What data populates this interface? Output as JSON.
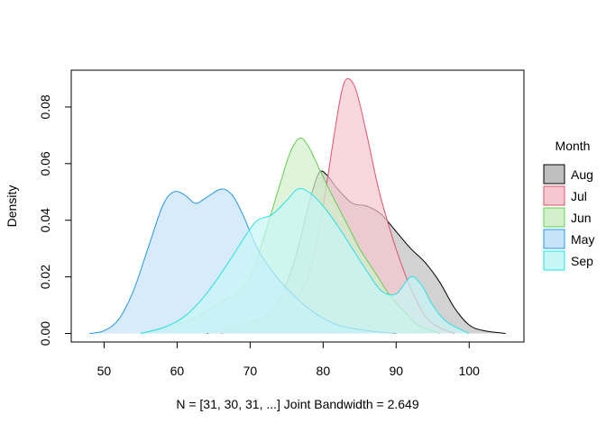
{
  "chart_data": {
    "type": "area",
    "title": "",
    "xlabel": "N = [31, 30, 31, ...]   Joint Bandwidth = 2.649",
    "ylabel": "Density",
    "xlim": [
      45.5,
      107.5
    ],
    "ylim": [
      -0.003,
      0.093
    ],
    "x_ticks": [
      50,
      60,
      70,
      80,
      90,
      100
    ],
    "y_ticks": [
      0.0,
      0.02,
      0.04,
      0.06,
      0.08
    ],
    "y_tick_labels": [
      "0.00",
      "0.02",
      "0.04",
      "0.06",
      "0.08"
    ],
    "grid": false,
    "legend": {
      "title": "Month",
      "placement": "right"
    },
    "series": [
      {
        "name": "Aug",
        "line_color": "#000000",
        "fill_color": "#bfbfbf",
        "points": [
          [
            64,
            0
          ],
          [
            68,
            0.002
          ],
          [
            72,
            0.006
          ],
          [
            74,
            0.012
          ],
          [
            76,
            0.025
          ],
          [
            77.5,
            0.04
          ],
          [
            78.5,
            0.05
          ],
          [
            79.5,
            0.057
          ],
          [
            80.5,
            0.056
          ],
          [
            82,
            0.051
          ],
          [
            84,
            0.046
          ],
          [
            86,
            0.045
          ],
          [
            88,
            0.042
          ],
          [
            90,
            0.036
          ],
          [
            92,
            0.03
          ],
          [
            94,
            0.025
          ],
          [
            96,
            0.018
          ],
          [
            98,
            0.009
          ],
          [
            100,
            0.003
          ],
          [
            102,
            0.001
          ],
          [
            105,
            0
          ]
        ]
      },
      {
        "name": "Jul",
        "line_color": "#df536b",
        "fill_color": "#f5c7cf",
        "points": [
          [
            66,
            0
          ],
          [
            70,
            0.002
          ],
          [
            74,
            0.007
          ],
          [
            77,
            0.015
          ],
          [
            78.5,
            0.025
          ],
          [
            80,
            0.045
          ],
          [
            81.5,
            0.07
          ],
          [
            82.5,
            0.085
          ],
          [
            83.3,
            0.09
          ],
          [
            84.5,
            0.086
          ],
          [
            86,
            0.07
          ],
          [
            87.5,
            0.052
          ],
          [
            89,
            0.038
          ],
          [
            90.5,
            0.026
          ],
          [
            92,
            0.016
          ],
          [
            94,
            0.006
          ],
          [
            96,
            0.002
          ],
          [
            98,
            0
          ]
        ]
      },
      {
        "name": "Jun",
        "line_color": "#61d04f",
        "fill_color": "#d2f0cc",
        "points": [
          [
            55,
            0
          ],
          [
            58,
            0.002
          ],
          [
            62,
            0.005
          ],
          [
            64,
            0.008
          ],
          [
            66,
            0.011
          ],
          [
            68,
            0.014
          ],
          [
            70,
            0.02
          ],
          [
            72,
            0.035
          ],
          [
            74,
            0.052
          ],
          [
            75.5,
            0.064
          ],
          [
            76.8,
            0.069
          ],
          [
            78,
            0.066
          ],
          [
            79.5,
            0.058
          ],
          [
            81,
            0.05
          ],
          [
            83,
            0.04
          ],
          [
            85,
            0.03
          ],
          [
            87,
            0.022
          ],
          [
            89,
            0.014
          ],
          [
            91,
            0.008
          ],
          [
            93,
            0.003
          ],
          [
            96,
            0
          ]
        ]
      },
      {
        "name": "May",
        "line_color": "#2297e6",
        "fill_color": "#c6e3f9",
        "points": [
          [
            48,
            0
          ],
          [
            50,
            0.001
          ],
          [
            52,
            0.005
          ],
          [
            54,
            0.015
          ],
          [
            56,
            0.03
          ],
          [
            58,
            0.045
          ],
          [
            59.5,
            0.05
          ],
          [
            61,
            0.049
          ],
          [
            62.5,
            0.046
          ],
          [
            64,
            0.048
          ],
          [
            66,
            0.051
          ],
          [
            67.5,
            0.049
          ],
          [
            69,
            0.042
          ],
          [
            71,
            0.03
          ],
          [
            73,
            0.022
          ],
          [
            75,
            0.016
          ],
          [
            77,
            0.011
          ],
          [
            79,
            0.007
          ],
          [
            82,
            0.003
          ],
          [
            86,
            0.001
          ],
          [
            90,
            0
          ]
        ]
      },
      {
        "name": "Sep",
        "line_color": "#28e2e5",
        "fill_color": "#c6f6f6",
        "points": [
          [
            55,
            0
          ],
          [
            58,
            0.002
          ],
          [
            61,
            0.006
          ],
          [
            64,
            0.014
          ],
          [
            67,
            0.025
          ],
          [
            69.5,
            0.035
          ],
          [
            71,
            0.04
          ],
          [
            73,
            0.042
          ],
          [
            75,
            0.047
          ],
          [
            76.5,
            0.051
          ],
          [
            78,
            0.05
          ],
          [
            80,
            0.045
          ],
          [
            82,
            0.038
          ],
          [
            84,
            0.03
          ],
          [
            86,
            0.022
          ],
          [
            88,
            0.015
          ],
          [
            90,
            0.014
          ],
          [
            92,
            0.02
          ],
          [
            93.5,
            0.017
          ],
          [
            95,
            0.01
          ],
          [
            97,
            0.004
          ],
          [
            100,
            0
          ]
        ]
      }
    ]
  }
}
